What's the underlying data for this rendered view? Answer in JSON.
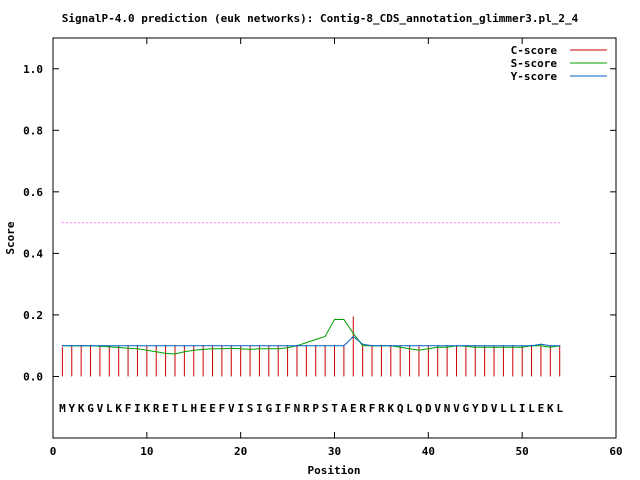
{
  "chart_data": {
    "type": "line",
    "title": "SignalP-4.0 prediction (euk networks): Contig-8_CDS_annotation_glimmer3.pl_2_4",
    "xlabel": "Position",
    "ylabel": "Score",
    "xlim": [
      0,
      60
    ],
    "ylim": [
      -0.2,
      1.1
    ],
    "xticks": [
      0,
      10,
      20,
      30,
      40,
      50,
      60
    ],
    "yticks": [
      0.0,
      0.2,
      0.4,
      0.6,
      0.8,
      1.0
    ],
    "xtick_labels": [
      "0",
      "10",
      "20",
      "30",
      "40",
      "50",
      "60"
    ],
    "ytick_labels": [
      "0.0",
      "0.2",
      "0.4",
      "0.6",
      "0.8",
      "1.0"
    ],
    "legend_position": "top-right",
    "threshold": {
      "value": 0.5,
      "x_range": [
        1,
        54
      ],
      "color": "#ff00ff",
      "style": "dotted"
    },
    "sequence": [
      "M",
      "Y",
      "K",
      "G",
      "V",
      "L",
      "K",
      "F",
      "I",
      "K",
      "R",
      "E",
      "T",
      "L",
      "H",
      "E",
      "E",
      "F",
      "V",
      "I",
      "S",
      "I",
      "G",
      "I",
      "F",
      "N",
      "R",
      "P",
      "S",
      "T",
      "A",
      "E",
      "R",
      "F",
      "R",
      "K",
      "Q",
      "L",
      "Q",
      "D",
      "V",
      "N",
      "V",
      "G",
      "Y",
      "D",
      "V",
      "L",
      "L",
      "I",
      "L",
      "E",
      "K",
      "L"
    ],
    "series": [
      {
        "name": "C-score",
        "color": "#cc0000",
        "style": "impulses",
        "x": [
          1,
          2,
          3,
          4,
          5,
          6,
          7,
          8,
          9,
          10,
          11,
          12,
          13,
          14,
          15,
          16,
          17,
          18,
          19,
          20,
          21,
          22,
          23,
          24,
          25,
          26,
          27,
          28,
          29,
          30,
          31,
          32,
          33,
          34,
          35,
          36,
          37,
          38,
          39,
          40,
          41,
          42,
          43,
          44,
          45,
          46,
          47,
          48,
          49,
          50,
          51,
          52,
          53,
          54
        ],
        "values": [
          0.095,
          0.1,
          0.1,
          0.1,
          0.1,
          0.1,
          0.1,
          0.1,
          0.1,
          0.1,
          0.1,
          0.1,
          0.1,
          0.1,
          0.1,
          0.1,
          0.1,
          0.1,
          0.1,
          0.1,
          0.1,
          0.1,
          0.1,
          0.1,
          0.1,
          0.1,
          0.1,
          0.1,
          0.1,
          0.1,
          0.1,
          0.195,
          0.1,
          0.1,
          0.1,
          0.1,
          0.1,
          0.1,
          0.1,
          0.1,
          0.1,
          0.1,
          0.1,
          0.1,
          0.1,
          0.1,
          0.1,
          0.1,
          0.1,
          0.1,
          0.1,
          0.1,
          0.1,
          0.1
        ]
      },
      {
        "name": "S-score",
        "color": "#00a000",
        "style": "line",
        "x": [
          1,
          2,
          3,
          4,
          5,
          6,
          7,
          8,
          9,
          10,
          11,
          12,
          13,
          14,
          15,
          16,
          17,
          18,
          19,
          20,
          21,
          22,
          23,
          24,
          25,
          26,
          27,
          28,
          29,
          30,
          31,
          32,
          33,
          34,
          35,
          36,
          37,
          38,
          39,
          40,
          41,
          42,
          43,
          44,
          45,
          46,
          47,
          48,
          49,
          50,
          51,
          52,
          53,
          54
        ],
        "values": [
          0.1,
          0.1,
          0.1,
          0.1,
          0.098,
          0.096,
          0.094,
          0.092,
          0.09,
          0.085,
          0.08,
          0.075,
          0.073,
          0.08,
          0.085,
          0.088,
          0.09,
          0.09,
          0.092,
          0.09,
          0.088,
          0.09,
          0.09,
          0.09,
          0.093,
          0.1,
          0.11,
          0.12,
          0.13,
          0.185,
          0.185,
          0.14,
          0.1,
          0.1,
          0.1,
          0.1,
          0.095,
          0.09,
          0.085,
          0.09,
          0.095,
          0.095,
          0.1,
          0.098,
          0.095,
          0.095,
          0.095,
          0.095,
          0.095,
          0.095,
          0.1,
          0.1,
          0.095,
          0.1
        ]
      },
      {
        "name": "Y-score",
        "color": "#0060c0",
        "style": "line",
        "x": [
          1,
          2,
          3,
          4,
          5,
          6,
          7,
          8,
          9,
          10,
          11,
          12,
          13,
          14,
          15,
          16,
          17,
          18,
          19,
          20,
          21,
          22,
          23,
          24,
          25,
          26,
          27,
          28,
          29,
          30,
          31,
          32,
          33,
          34,
          35,
          36,
          37,
          38,
          39,
          40,
          41,
          42,
          43,
          44,
          45,
          46,
          47,
          48,
          49,
          50,
          51,
          52,
          53,
          54
        ],
        "values": [
          0.1,
          0.1,
          0.1,
          0.1,
          0.1,
          0.1,
          0.1,
          0.1,
          0.1,
          0.1,
          0.1,
          0.1,
          0.1,
          0.1,
          0.1,
          0.1,
          0.1,
          0.1,
          0.1,
          0.1,
          0.1,
          0.1,
          0.1,
          0.1,
          0.1,
          0.1,
          0.1,
          0.1,
          0.1,
          0.1,
          0.1,
          0.13,
          0.105,
          0.1,
          0.1,
          0.1,
          0.1,
          0.1,
          0.1,
          0.1,
          0.1,
          0.1,
          0.1,
          0.1,
          0.1,
          0.1,
          0.1,
          0.1,
          0.1,
          0.1,
          0.1,
          0.105,
          0.1,
          0.1
        ]
      }
    ]
  }
}
